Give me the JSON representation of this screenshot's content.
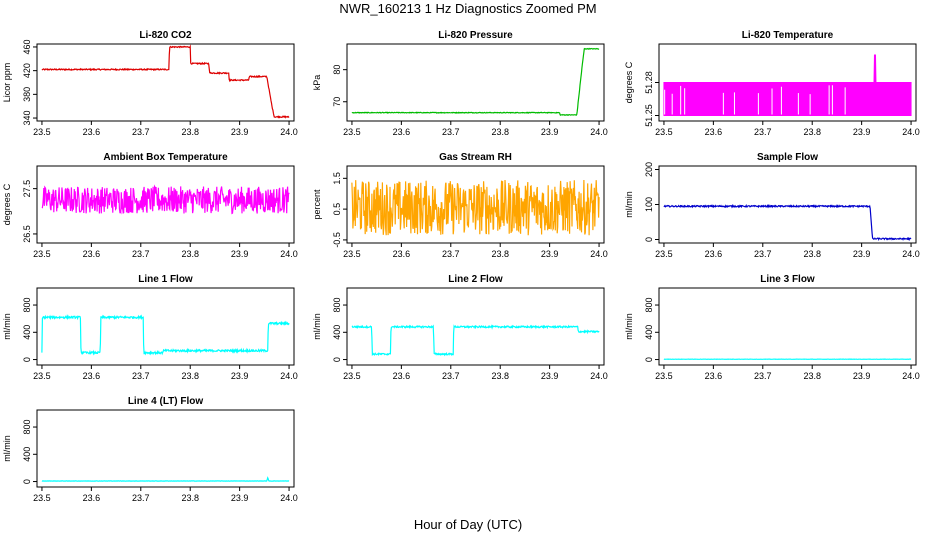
{
  "title": "NWR_160213  1 Hz Diagnostics Zoomed PM",
  "xlabel": "Hour of Day (UTC)",
  "chart_data": [
    {
      "type": "line",
      "title": "Li-820 CO2",
      "ylabel": "Licor ppm",
      "color": "#dd0000",
      "xlim": [
        23.49,
        24.01
      ],
      "ylim": [
        335,
        465
      ],
      "xticks": [
        "23.5",
        "23.6",
        "23.7",
        "23.8",
        "23.9",
        "24.0"
      ],
      "yticks": [
        340,
        380,
        420,
        460
      ],
      "noise": 1,
      "series": [
        {
          "x": [
            23.5,
            23.757,
            23.758,
            23.8,
            23.801,
            23.838,
            23.839,
            23.878,
            23.879,
            23.918,
            23.92,
            23.955,
            23.965,
            23.97,
            24.0
          ],
          "y": [
            422,
            422,
            460,
            460,
            432,
            432,
            416,
            416,
            404,
            404,
            410,
            410,
            362,
            342,
            342
          ]
        }
      ]
    },
    {
      "type": "line",
      "title": "Li-820 Pressure",
      "ylabel": "kPa",
      "color": "#00bb00",
      "xlim": [
        23.49,
        24.01
      ],
      "ylim": [
        64,
        88
      ],
      "xticks": [
        "23.5",
        "23.6",
        "23.7",
        "23.8",
        "23.9",
        "24.0"
      ],
      "yticks": [
        70,
        80
      ],
      "noise": 0.1,
      "series": [
        {
          "x": [
            23.5,
            23.92,
            23.921,
            23.955,
            23.965,
            23.97,
            24.0
          ],
          "y": [
            66.6,
            66.6,
            65.9,
            65.9,
            80,
            86.5,
            86.5
          ]
        }
      ]
    },
    {
      "type": "area",
      "title": "Li-820 Temperature",
      "ylabel": "degrees C",
      "color": "#ff00ff",
      "xlim": [
        23.49,
        24.01
      ],
      "ylim": [
        51.245,
        51.315
      ],
      "xticks": [
        "23.5",
        "23.6",
        "23.7",
        "23.8",
        "23.9",
        "24.0"
      ],
      "yticks": [
        "51.25",
        "51.28"
      ],
      "series": [
        {
          "x": [
            23.5,
            23.925,
            23.926,
            23.928,
            23.929,
            24.0
          ],
          "y": [
            51.28,
            51.28,
            51.305,
            51.305,
            51.28,
            51.28
          ]
        }
      ],
      "baseline": 51.25
    },
    {
      "type": "line",
      "title": "Ambient Box Temperature",
      "ylabel": "degrees C",
      "color": "#ff00ff",
      "xlim": [
        23.49,
        24.01
      ],
      "ylim": [
        26.3,
        28.0
      ],
      "xticks": [
        "23.5",
        "23.6",
        "23.7",
        "23.8",
        "23.9",
        "24.0"
      ],
      "yticks": [
        "26.5",
        "27.5"
      ],
      "noise": 0.3,
      "series": [
        {
          "x": [
            23.5,
            24.0
          ],
          "y": [
            27.25,
            27.25
          ]
        }
      ]
    },
    {
      "type": "line",
      "title": "Gas Stream RH",
      "ylabel": "percent",
      "color": "#ffa500",
      "xlim": [
        23.49,
        24.01
      ],
      "ylim": [
        -0.6,
        1.9
      ],
      "xticks": [
        "23.5",
        "23.6",
        "23.7",
        "23.8",
        "23.9",
        "24.0"
      ],
      "yticks": [
        "-0.5",
        "0.5",
        "1.5"
      ],
      "noise": 0.9,
      "series": [
        {
          "x": [
            23.5,
            24.0
          ],
          "y": [
            0.55,
            0.55
          ]
        }
      ]
    },
    {
      "type": "line",
      "title": "Sample Flow",
      "ylabel": "ml/min",
      "color": "#0000cc",
      "xlim": [
        23.49,
        24.01
      ],
      "ylim": [
        -10,
        210
      ],
      "xticks": [
        "23.5",
        "23.6",
        "23.7",
        "23.8",
        "23.9",
        "24.0"
      ],
      "yticks": [
        0,
        100,
        200
      ],
      "noise": 2,
      "series": [
        {
          "x": [
            23.5,
            23.917,
            23.922,
            24.0
          ],
          "y": [
            95,
            95,
            2,
            2
          ]
        }
      ]
    },
    {
      "type": "line",
      "title": "Line 1 Flow",
      "ylabel": "ml/min",
      "color": "#00ffff",
      "xlim": [
        23.49,
        24.01
      ],
      "ylim": [
        -80,
        1050
      ],
      "xticks": [
        "23.5",
        "23.6",
        "23.7",
        "23.8",
        "23.9",
        "24.0"
      ],
      "yticks": [
        0,
        400,
        800
      ],
      "noise": 15,
      "series": [
        {
          "x": [
            23.5,
            23.501,
            23.578,
            23.579,
            23.618,
            23.619,
            23.705,
            23.706,
            23.745,
            23.746,
            23.957,
            23.958,
            24.0
          ],
          "y": [
            100,
            620,
            620,
            100,
            100,
            620,
            620,
            100,
            100,
            130,
            130,
            530,
            530
          ]
        }
      ]
    },
    {
      "type": "line",
      "title": "Line 2 Flow",
      "ylabel": "ml/min",
      "color": "#00ffff",
      "xlim": [
        23.49,
        24.01
      ],
      "ylim": [
        -80,
        1050
      ],
      "xticks": [
        "23.5",
        "23.6",
        "23.7",
        "23.8",
        "23.9",
        "24.0"
      ],
      "yticks": [
        0,
        400,
        800
      ],
      "noise": 12,
      "series": [
        {
          "x": [
            23.5,
            23.54,
            23.541,
            23.578,
            23.579,
            23.665,
            23.666,
            23.705,
            23.706,
            23.957,
            23.958,
            24.0
          ],
          "y": [
            480,
            480,
            80,
            80,
            480,
            480,
            80,
            80,
            480,
            480,
            410,
            410
          ]
        }
      ]
    },
    {
      "type": "line",
      "title": "Line 3 Flow",
      "ylabel": "ml/min",
      "color": "#00ffff",
      "xlim": [
        23.49,
        24.01
      ],
      "ylim": [
        -80,
        1050
      ],
      "xticks": [
        "23.5",
        "23.6",
        "23.7",
        "23.8",
        "23.9",
        "24.0"
      ],
      "yticks": [
        0,
        400,
        800
      ],
      "noise": 2,
      "series": [
        {
          "x": [
            23.5,
            24.0
          ],
          "y": [
            5,
            5
          ]
        }
      ]
    },
    {
      "type": "line",
      "title": "Line 4 (LT) Flow",
      "ylabel": "ml/min",
      "color": "#00ffff",
      "xlim": [
        23.49,
        24.01
      ],
      "ylim": [
        -80,
        1050
      ],
      "xticks": [
        "23.5",
        "23.6",
        "23.7",
        "23.8",
        "23.9",
        "24.0"
      ],
      "yticks": [
        0,
        400,
        800
      ],
      "noise": 2,
      "series": [
        {
          "x": [
            23.5,
            23.955,
            23.957,
            23.959,
            24.0
          ],
          "y": [
            8,
            8,
            60,
            8,
            8
          ]
        }
      ]
    }
  ]
}
